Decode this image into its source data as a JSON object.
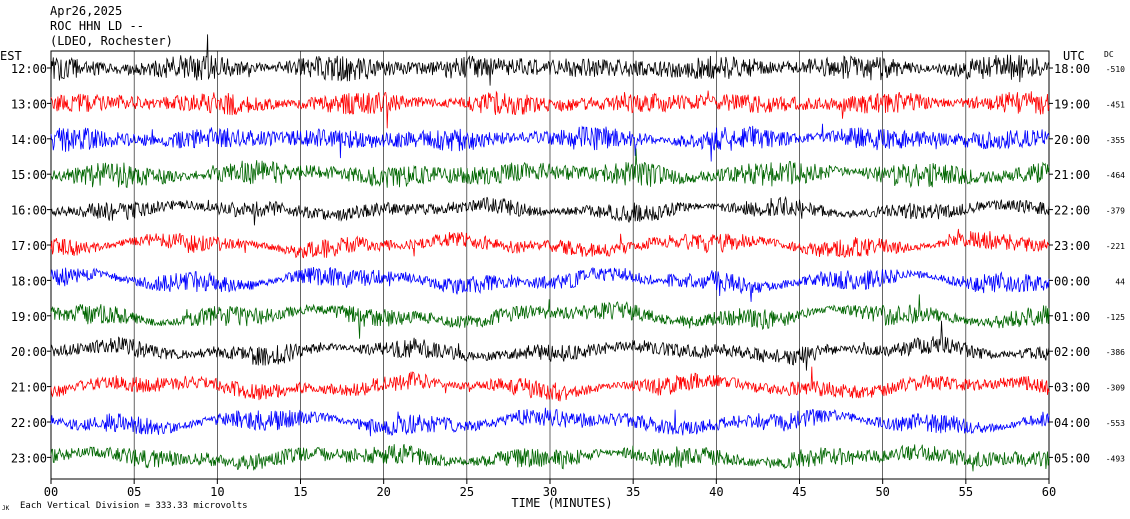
{
  "header": {
    "date": "Apr26,2025",
    "station": "ROC HHN LD --",
    "network": "(LDEO, Rochester)"
  },
  "left_axis_title": "EST",
  "right_axis_title": "UTC",
  "dc_title": "DC",
  "footer": {
    "corner_mark": "JK",
    "scale_note": "Each Vertical Division = 333.33 microvolts"
  },
  "chart_data": {
    "type": "line",
    "xlabel": "TIME (MINUTES)",
    "xlim": [
      0,
      60
    ],
    "x_ticks": [
      "00",
      "05",
      "10",
      "15",
      "20",
      "25",
      "30",
      "35",
      "40",
      "45",
      "50",
      "55",
      "60"
    ],
    "grid": "vertical lines every 5 minutes",
    "series_colors": [
      "#000000",
      "#ff0000",
      "#0000ff",
      "#006600"
    ],
    "rows": [
      {
        "est": "12:00",
        "utc": "18:00",
        "dc": "-510",
        "color": "#000000",
        "amp": 1.0,
        "wander": 0.15
      },
      {
        "est": "13:00",
        "utc": "19:00",
        "dc": "-451",
        "color": "#ff0000",
        "amp": 0.9,
        "wander": 0.15
      },
      {
        "est": "14:00",
        "utc": "20:00",
        "dc": "-355",
        "color": "#0000ff",
        "amp": 0.95,
        "wander": 0.2
      },
      {
        "est": "15:00",
        "utc": "21:00",
        "dc": "-464",
        "color": "#006600",
        "amp": 1.0,
        "wander": 0.3
      },
      {
        "est": "16:00",
        "utc": "22:00",
        "dc": "-379",
        "color": "#000000",
        "amp": 0.7,
        "wander": 0.45
      },
      {
        "est": "17:00",
        "utc": "23:00",
        "dc": "-221",
        "color": "#ff0000",
        "amp": 0.75,
        "wander": 0.55
      },
      {
        "est": "18:00",
        "utc": "00:00",
        "dc": "44",
        "color": "#0000ff",
        "amp": 0.8,
        "wander": 0.6
      },
      {
        "est": "19:00",
        "utc": "01:00",
        "dc": "-125",
        "color": "#006600",
        "amp": 0.8,
        "wander": 0.65
      },
      {
        "est": "20:00",
        "utc": "02:00",
        "dc": "-386",
        "color": "#000000",
        "amp": 0.75,
        "wander": 0.55
      },
      {
        "est": "21:00",
        "utc": "03:00",
        "dc": "-309",
        "color": "#ff0000",
        "amp": 0.75,
        "wander": 0.6
      },
      {
        "est": "22:00",
        "utc": "04:00",
        "dc": "-553",
        "color": "#0000ff",
        "amp": 0.8,
        "wander": 0.6
      },
      {
        "est": "23:00",
        "utc": "05:00",
        "dc": "-493",
        "color": "#006600",
        "amp": 0.85,
        "wander": 0.5
      }
    ]
  }
}
